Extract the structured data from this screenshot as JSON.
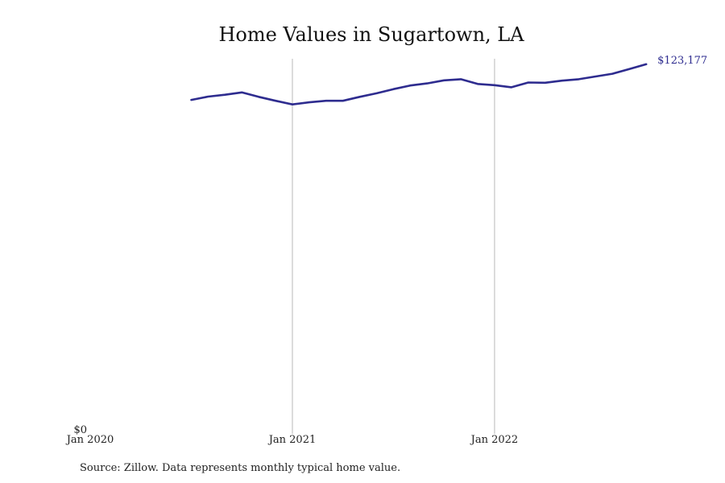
{
  "chart_data": {
    "type": "line",
    "title": "Home Values in Sugartown, LA",
    "xlabel": "",
    "ylabel": "",
    "x_range": [
      "2020-01",
      "2022-12"
    ],
    "ylim": [
      0,
      125000
    ],
    "grid": "vertical lines at Jan 2021 and Jan 2022",
    "line_color": "#2e2c8f",
    "x_ticks": [
      {
        "label": "Jan 2020",
        "x": "2020-01"
      },
      {
        "label": "Jan 2021",
        "x": "2021-01"
      },
      {
        "label": "Jan 2022",
        "x": "2022-01"
      }
    ],
    "y_ticks": [
      {
        "label": "$0",
        "y": 0
      }
    ],
    "end_label": "$123,177",
    "series": [
      {
        "x": [
          "2020-07",
          "2020-08",
          "2020-09",
          "2020-10",
          "2020-11",
          "2020-12",
          "2021-01",
          "2021-02",
          "2021-03",
          "2021-04",
          "2021-05",
          "2021-06",
          "2021-07",
          "2021-08",
          "2021-09",
          "2021-10",
          "2021-11",
          "2021-12",
          "2022-01",
          "2022-02",
          "2022-03",
          "2022-04",
          "2022-05",
          "2022-06",
          "2022-07",
          "2022-08",
          "2022-09",
          "2022-10"
        ],
        "values": [
          111300,
          112400,
          113000,
          113800,
          112300,
          111000,
          109800,
          110500,
          111000,
          111000,
          112300,
          113500,
          114900,
          116100,
          116800,
          117800,
          118200,
          116600,
          116200,
          115500,
          117100,
          117000,
          117700,
          118200,
          119100,
          120000,
          121600,
          123177
        ]
      }
    ]
  },
  "source": "Source: Zillow. Data represents monthly typical home value."
}
